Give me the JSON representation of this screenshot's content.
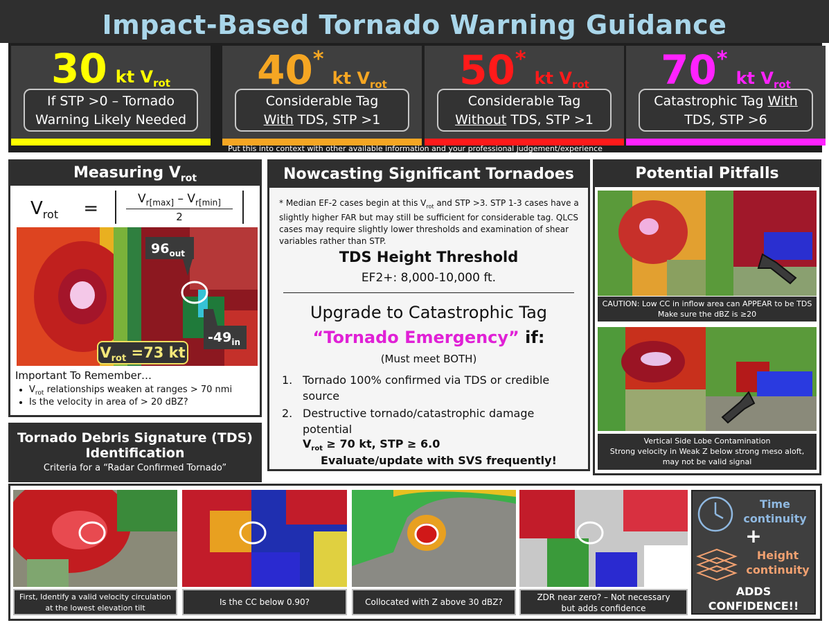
{
  "banner": {
    "title": "Impact-Based Tornado Warning Guidance"
  },
  "tiers": [
    {
      "value": "30",
      "star": "",
      "unit": "kt V",
      "unit_sub": "rot",
      "line1": "If STP >0 – Tornado",
      "line2": "Warning Likely Needed",
      "color": "#ffff00"
    },
    {
      "value": "40",
      "star": "*",
      "unit": "kt V",
      "unit_sub": "rot",
      "line1": "Considerable Tag",
      "line2a": "With",
      "line2b": " TDS, STP >1",
      "color": "#f5a623"
    },
    {
      "value": "50",
      "star": "*",
      "unit": "kt V",
      "unit_sub": "rot",
      "line1": "Considerable Tag",
      "line2a": "Without",
      "line2b": " TDS, STP >1",
      "color": "#ff1a1a"
    },
    {
      "value": "70",
      "star": "*",
      "unit": "kt V",
      "unit_sub": "rot",
      "line1a": "Catastrophic Tag ",
      "line1b": "With",
      "line2": "TDS, STP >6",
      "color": "#ff22ff"
    }
  ],
  "context_note": "Put this into context with other available information and your professional judgement/experience",
  "measuring": {
    "title": "Measuring V",
    "title_sub": "rot",
    "formula_lhs": "V",
    "formula_lhs_sub": "rot",
    "formula_eq": "=",
    "num_a": "V",
    "num_a_sub": "r[max]",
    "num_minus": " – V",
    "num_b_sub": "r[min]",
    "denominator": "2",
    "label_out": "96",
    "label_out_sub": "out",
    "label_in": "-49",
    "label_in_sub": "in",
    "vrot_box": "V",
    "vrot_box_sub": "rot",
    "vrot_box_val": " =73 kt",
    "remember_title": "Important To Remember…",
    "bullet1_a": "V",
    "bullet1_sub": "rot",
    "bullet1_b": " relationships weaken at ranges > 70 nmi",
    "bullet2": "Is the velocity in area of > 20 dBZ?"
  },
  "nowcasting": {
    "title": "Nowcasting Significant Tornadoes",
    "note_a": "* Median EF-2 cases begin at this V",
    "note_sub": "rot",
    "note_b": " and STP >3. STP 1-3 cases have a slightly higher FAR but may still be sufficient for considerable tag. QLCS cases may require slightly lower thresholds and examination of shear variables rather than STP.",
    "tds_title": "TDS Height Threshold",
    "tds_value": "EF2+: 8,000-10,000 ft.",
    "upgrade": "Upgrade to Catastrophic Tag",
    "emergency": "“Tornado Emergency”",
    "emergency_if": " if:",
    "must": "(Must meet BOTH)",
    "item1": "Tornado 100% confirmed via TDS or credible source",
    "item2": "Destructive tornado/catastrophic damage potential",
    "criteria_a": "V",
    "criteria_sub": "rot",
    "criteria_b": " ≥ 70 kt, STP ≥ 6.0",
    "evaluate": "Evaluate/update with SVS frequently!"
  },
  "pitfalls": {
    "title": "Potential Pitfalls",
    "caption1a": "CAUTION: Low CC in inflow area can APPEAR to be TDS",
    "caption1b": "Make sure the dBZ is ≥20",
    "caption2a": "Vertical Side Lobe Contamination",
    "caption2b": "Strong velocity in Weak Z below strong meso aloft,",
    "caption2c": "may not be valid signal"
  },
  "tds": {
    "title1": "Tornado Debris Signature (TDS)",
    "title2": "Identification",
    "subtitle": "Criteria for a “Radar Confirmed Tornado”",
    "cap1a": "First, Identify a valid velocity circulation",
    "cap1b": "at the lowest elevation tilt",
    "cap2": "Is the CC below 0.90?",
    "cap3": "Collocated with Z above 30 dBZ?",
    "cap4a": "ZDR near zero? – Not necessary",
    "cap4b": "but adds confidence"
  },
  "confidence": {
    "time1": "Time",
    "time2": "continuity",
    "plus": "+",
    "height1": "Height",
    "height2": "continuity",
    "adds1": "ADDS",
    "adds2": "CONFIDENCE!!",
    "time_color": "#8fb8e0",
    "height_color": "#f0a070"
  },
  "icons": [
    "clock-icon",
    "layers-icon",
    "arrow-icon"
  ]
}
